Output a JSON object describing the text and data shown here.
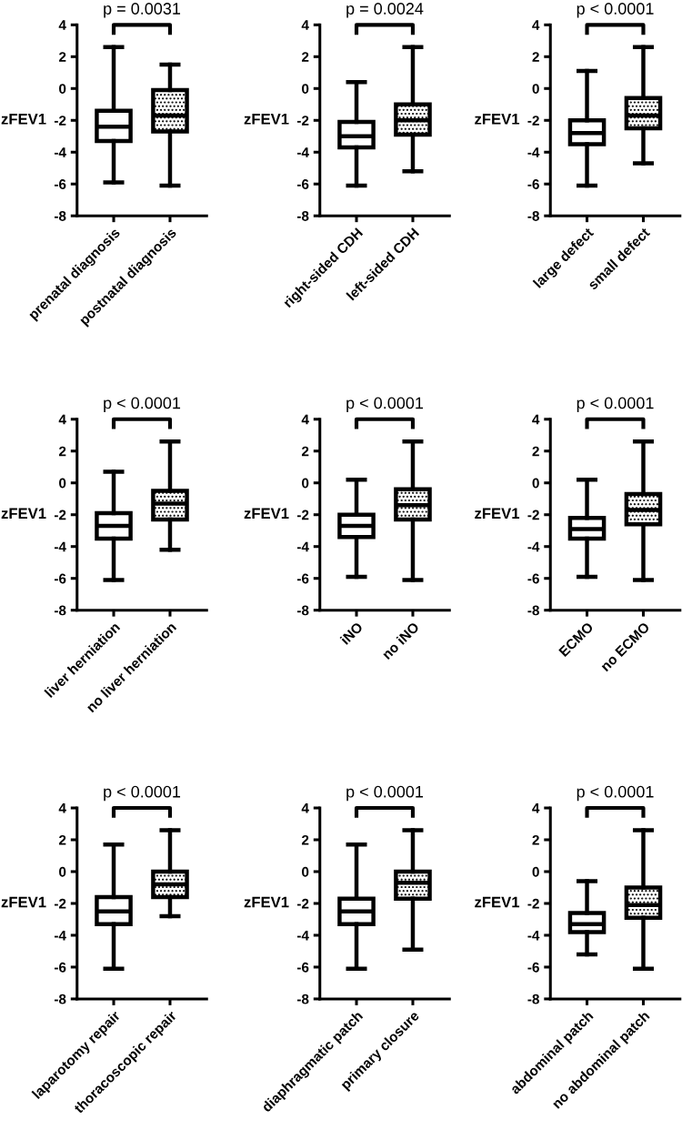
{
  "chart_data": [
    {
      "type": "box",
      "ylabel": "zFEV1",
      "categories": [
        "prenatal diagnosis",
        "postnatal diagnosis"
      ],
      "annotations": [
        "p = 0.0031"
      ],
      "ylim": [
        -8,
        4
      ],
      "yticks": [
        -8,
        -6,
        -4,
        -2,
        0,
        2,
        4
      ],
      "grid": false,
      "boxes": [
        {
          "low": -5.9,
          "q1": -3.3,
          "median": -2.4,
          "q3": -1.4,
          "high": 2.6
        },
        {
          "low": -6.1,
          "q1": -2.7,
          "median": -1.7,
          "q3": -0.1,
          "high": 1.5
        }
      ]
    },
    {
      "type": "box",
      "ylabel": "zFEV1",
      "categories": [
        "right-sided CDH",
        "left-sided CDH"
      ],
      "annotations": [
        "p = 0.0024"
      ],
      "ylim": [
        -8,
        4
      ],
      "yticks": [
        -8,
        -6,
        -4,
        -2,
        0,
        2,
        4
      ],
      "grid": false,
      "boxes": [
        {
          "low": -6.1,
          "q1": -3.7,
          "median": -3.0,
          "q3": -2.1,
          "high": 0.4
        },
        {
          "low": -5.2,
          "q1": -2.9,
          "median": -2.0,
          "q3": -1.0,
          "high": 2.6
        }
      ]
    },
    {
      "type": "box",
      "ylabel": "zFEV1",
      "categories": [
        "large defect",
        "small defect"
      ],
      "annotations": [
        "p < 0.0001"
      ],
      "ylim": [
        -8,
        4
      ],
      "yticks": [
        -8,
        -6,
        -4,
        -2,
        0,
        2,
        4
      ],
      "grid": false,
      "boxes": [
        {
          "low": -6.1,
          "q1": -3.5,
          "median": -2.8,
          "q3": -2.0,
          "high": 1.1
        },
        {
          "low": -4.7,
          "q1": -2.5,
          "median": -1.7,
          "q3": -0.6,
          "high": 2.6
        }
      ]
    },
    {
      "type": "box",
      "ylabel": "zFEV1",
      "categories": [
        "liver herniation",
        "no liver herniation"
      ],
      "annotations": [
        "p < 0.0001"
      ],
      "ylim": [
        -8,
        4
      ],
      "yticks": [
        -8,
        -6,
        -4,
        -2,
        0,
        2,
        4
      ],
      "grid": false,
      "boxes": [
        {
          "low": -6.1,
          "q1": -3.5,
          "median": -2.7,
          "q3": -1.9,
          "high": 0.7
        },
        {
          "low": -4.2,
          "q1": -2.3,
          "median": -1.3,
          "q3": -0.5,
          "high": 2.6
        }
      ]
    },
    {
      "type": "box",
      "ylabel": "zFEV1",
      "categories": [
        "iNO",
        "no iNO"
      ],
      "annotations": [
        "p < 0.0001"
      ],
      "ylim": [
        -8,
        4
      ],
      "yticks": [
        -8,
        -6,
        -4,
        -2,
        0,
        2,
        4
      ],
      "grid": false,
      "boxes": [
        {
          "low": -5.9,
          "q1": -3.4,
          "median": -2.7,
          "q3": -2.0,
          "high": 0.2
        },
        {
          "low": -6.1,
          "q1": -2.3,
          "median": -1.4,
          "q3": -0.4,
          "high": 2.6
        }
      ]
    },
    {
      "type": "box",
      "ylabel": "zFEV1",
      "categories": [
        "ECMO",
        "no ECMO"
      ],
      "annotations": [
        "p < 0.0001"
      ],
      "ylim": [
        -8,
        4
      ],
      "yticks": [
        -8,
        -6,
        -4,
        -2,
        0,
        2,
        4
      ],
      "grid": false,
      "boxes": [
        {
          "low": -5.9,
          "q1": -3.5,
          "median": -2.9,
          "q3": -2.2,
          "high": 0.2
        },
        {
          "low": -6.1,
          "q1": -2.6,
          "median": -1.7,
          "q3": -0.7,
          "high": 2.6
        }
      ]
    },
    {
      "type": "box",
      "ylabel": "zFEV1",
      "categories": [
        "laparotomy repair",
        "thoracoscopic repair"
      ],
      "annotations": [
        "p < 0.0001"
      ],
      "ylim": [
        -8,
        4
      ],
      "yticks": [
        -8,
        -6,
        -4,
        -2,
        0,
        2,
        4
      ],
      "grid": false,
      "boxes": [
        {
          "low": -6.1,
          "q1": -3.3,
          "median": -2.5,
          "q3": -1.6,
          "high": 1.7
        },
        {
          "low": -2.8,
          "q1": -1.6,
          "median": -0.8,
          "q3": 0.0,
          "high": 2.6
        }
      ]
    },
    {
      "type": "box",
      "ylabel": "zFEV1",
      "categories": [
        "diaphragmatic patch",
        "primary closure"
      ],
      "annotations": [
        "p < 0.0001"
      ],
      "ylim": [
        -8,
        4
      ],
      "yticks": [
        -8,
        -6,
        -4,
        -2,
        0,
        2,
        4
      ],
      "grid": false,
      "boxes": [
        {
          "low": -6.1,
          "q1": -3.3,
          "median": -2.5,
          "q3": -1.7,
          "high": 1.7
        },
        {
          "low": -4.9,
          "q1": -1.7,
          "median": -0.7,
          "q3": 0.0,
          "high": 2.6
        }
      ]
    },
    {
      "type": "box",
      "ylabel": "zFEV1",
      "categories": [
        "abdominal patch",
        "no abdominal patch"
      ],
      "annotations": [
        "p < 0.0001"
      ],
      "ylim": [
        -8,
        4
      ],
      "yticks": [
        -8,
        -6,
        -4,
        -2,
        0,
        2,
        4
      ],
      "grid": false,
      "boxes": [
        {
          "low": -5.2,
          "q1": -3.8,
          "median": -3.3,
          "q3": -2.6,
          "high": -0.6
        },
        {
          "low": -6.1,
          "q1": -2.9,
          "median": -2.1,
          "q3": -1.0,
          "high": 2.6
        }
      ]
    }
  ]
}
